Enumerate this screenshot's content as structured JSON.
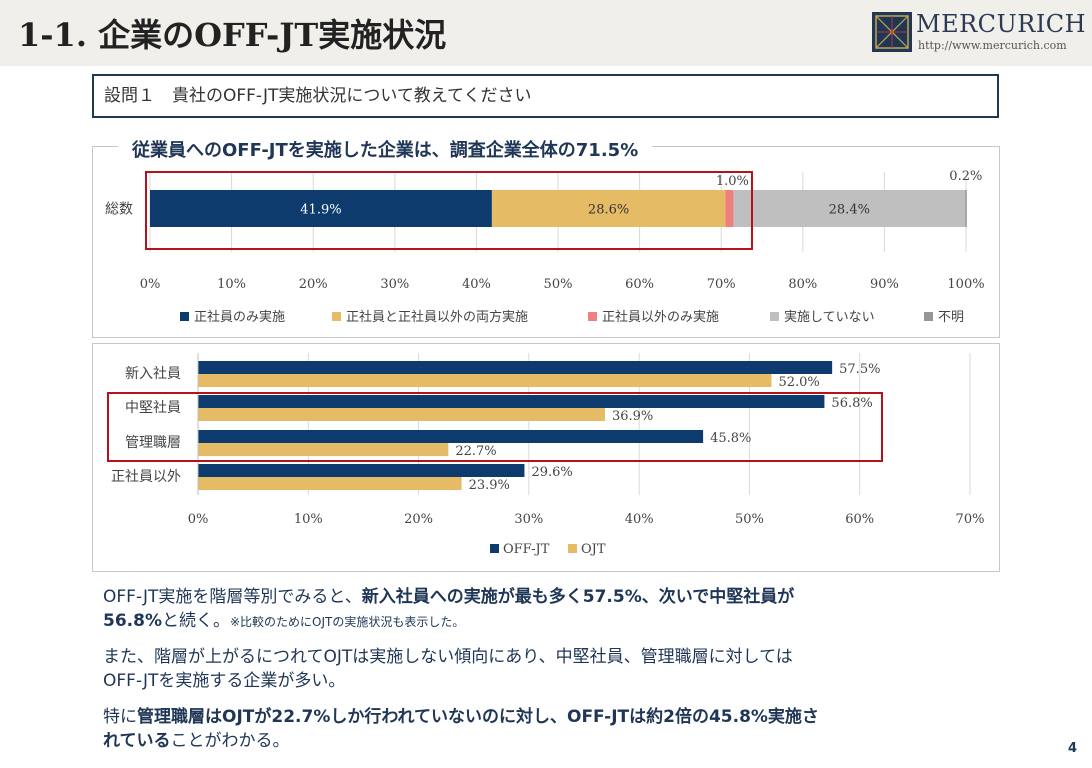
{
  "header": {
    "title": "1-1. 企業のOFF-JT実施状況",
    "logo_name": "MERCURICH",
    "logo_url": "http://www.mercurich.com"
  },
  "question": "設問１　貴社のOFF-JT実施状況について教えてください",
  "colors": {
    "navy": "#0d3b6e",
    "tan": "#e6bb65",
    "pink": "#f08080",
    "lightgray": "#bfbfbf",
    "gray": "#969696",
    "highlight": "#b5121b"
  },
  "chart_data": [
    {
      "type": "bar",
      "orientation": "horizontal",
      "stacked": true,
      "title": "従業員へのOFF-JTを実施した企業は、調査企業全体の71.5%",
      "categories": [
        "総数"
      ],
      "series": [
        {
          "name": "正社員のみ実施",
          "values": [
            41.9
          ],
          "label": "41.9%"
        },
        {
          "name": "正社員と正社員以外の両方実施",
          "values": [
            28.6
          ],
          "label": "28.6%"
        },
        {
          "name": "正社員以外のみ実施",
          "values": [
            1.0
          ],
          "label": "1.0%"
        },
        {
          "name": "実施していない",
          "values": [
            28.4
          ],
          "label": "28.4%"
        },
        {
          "name": "不明",
          "values": [
            0.2
          ],
          "label": "0.2%"
        }
      ],
      "xlim": [
        0,
        100
      ],
      "xticks": [
        "0%",
        "10%",
        "20%",
        "30%",
        "40%",
        "50%",
        "60%",
        "70%",
        "80%",
        "90%",
        "100%"
      ],
      "grid": true,
      "legend": "bottom"
    },
    {
      "type": "bar",
      "orientation": "horizontal",
      "categories": [
        "新入社員",
        "中堅社員",
        "管理職層",
        "正社員以外"
      ],
      "series": [
        {
          "name": "OFF-JT",
          "values": [
            57.5,
            56.8,
            45.8,
            29.6
          ],
          "labels": [
            "57.5%",
            "56.8%",
            "45.8%",
            "29.6%"
          ]
        },
        {
          "name": "OJT",
          "values": [
            52.0,
            36.9,
            22.7,
            23.9
          ],
          "labels": [
            "52.0%",
            "36.9%",
            "22.7%",
            "23.9%"
          ]
        }
      ],
      "xlim": [
        0,
        70
      ],
      "xticks": [
        "0%",
        "10%",
        "20%",
        "30%",
        "40%",
        "50%",
        "60%",
        "70%"
      ],
      "grid": true,
      "legend": "bottom"
    }
  ],
  "body": {
    "p1_a": "OFF-JT実施を階層等別でみると、",
    "p1_b": "新入社員への実施が最も多く57.5%、次いで中堅社員が",
    "p1_c": "56.8%",
    "p1_d": "と続く。",
    "p1_note": "※比較のためにOJTの実施状況も表示した。",
    "p2_line1": "また、階層が上がるにつれてOJTは実施しない傾向にあり、中堅社員、管理職層に対しては",
    "p2_line2": "OFF-JTを実施する企業が多い。",
    "p3_a": "特に",
    "p3_b": "管理職層はOJTが22.7%しか行われていないのに対し、OFF-JTは約2倍の45.8%実施さ",
    "p3_c": "れている",
    "p3_d": "ことがわかる。"
  },
  "page_number": "4"
}
